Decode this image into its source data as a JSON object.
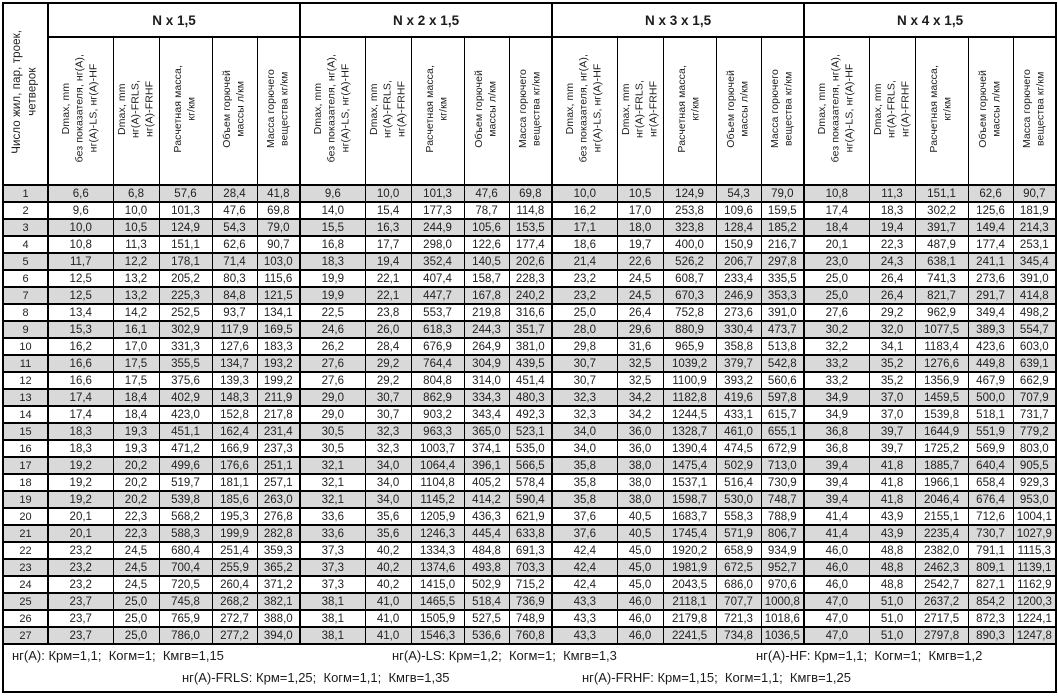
{
  "colors": {
    "stripe": "#d9d9d9",
    "border": "#000000",
    "text": "#1c1c1c"
  },
  "table": {
    "row_col_header": "Число жил, пар, троек,\nчетверок",
    "groups": [
      {
        "label": "N х 1,5"
      },
      {
        "label": "N х 2 х 1,5"
      },
      {
        "label": "N х 3 х 1,5"
      },
      {
        "label": "N х 4 х 1,5"
      }
    ],
    "sub_headers": [
      "Dmax, mm\nбез показателя, нг(А),\nнг(А)-LS, нг(А)-HF",
      "Dmax, mm\nнг(А)-FRLS,\nнг(А)-FRHF",
      "Расчетная масса,\nкг/км",
      "Объем горючей\nмассы л/км",
      "Масса горючего\nвещества кг/км"
    ],
    "rows": [
      {
        "n": "1",
        "cells": [
          "6,6",
          "6,8",
          "57,6",
          "28,4",
          "41,8",
          "9,6",
          "10,0",
          "101,3",
          "47,6",
          "69,8",
          "10,0",
          "10,5",
          "124,9",
          "54,3",
          "79,0",
          "10,8",
          "11,3",
          "151,1",
          "62,6",
          "90,7"
        ]
      },
      {
        "n": "2",
        "cells": [
          "9,6",
          "10,0",
          "101,3",
          "47,6",
          "69,8",
          "14,0",
          "15,4",
          "177,3",
          "78,7",
          "114,8",
          "16,2",
          "17,0",
          "253,8",
          "109,6",
          "159,5",
          "17,4",
          "18,3",
          "302,2",
          "125,6",
          "181,9"
        ]
      },
      {
        "n": "3",
        "cells": [
          "10,0",
          "10,5",
          "124,9",
          "54,3",
          "79,0",
          "15,5",
          "16,3",
          "244,9",
          "105,6",
          "153,5",
          "17,1",
          "18,0",
          "323,8",
          "128,4",
          "185,2",
          "18,4",
          "19,4",
          "391,7",
          "149,4",
          "214,3"
        ]
      },
      {
        "n": "4",
        "cells": [
          "10,8",
          "11,3",
          "151,1",
          "62,6",
          "90,7",
          "16,8",
          "17,7",
          "298,0",
          "122,6",
          "177,4",
          "18,6",
          "19,7",
          "400,0",
          "150,9",
          "216,7",
          "20,1",
          "22,3",
          "487,9",
          "177,4",
          "253,1"
        ]
      },
      {
        "n": "5",
        "cells": [
          "11,7",
          "12,2",
          "178,1",
          "71,4",
          "103,0",
          "18,3",
          "19,4",
          "352,4",
          "140,5",
          "202,6",
          "21,4",
          "22,6",
          "526,2",
          "206,7",
          "297,8",
          "23,0",
          "24,3",
          "638,1",
          "241,1",
          "345,4"
        ]
      },
      {
        "n": "6",
        "cells": [
          "12,5",
          "13,2",
          "205,2",
          "80,3",
          "115,6",
          "19,9",
          "22,1",
          "407,4",
          "158,7",
          "228,3",
          "23,2",
          "24,5",
          "608,7",
          "233,4",
          "335,5",
          "25,0",
          "26,4",
          "741,3",
          "273,6",
          "391,0"
        ]
      },
      {
        "n": "7",
        "cells": [
          "12,5",
          "13,2",
          "225,3",
          "84,8",
          "121,5",
          "19,9",
          "22,1",
          "447,7",
          "167,8",
          "240,2",
          "23,2",
          "24,5",
          "670,3",
          "246,9",
          "353,3",
          "25,0",
          "26,4",
          "821,7",
          "291,7",
          "414,8"
        ]
      },
      {
        "n": "8",
        "cells": [
          "13,4",
          "14,2",
          "252,5",
          "93,7",
          "134,1",
          "22,5",
          "23,8",
          "553,7",
          "219,8",
          "316,6",
          "25,0",
          "26,4",
          "752,8",
          "273,6",
          "391,0",
          "27,6",
          "29,2",
          "962,9",
          "349,4",
          "498,2"
        ]
      },
      {
        "n": "9",
        "cells": [
          "15,3",
          "16,1",
          "302,9",
          "117,9",
          "169,5",
          "24,6",
          "26,0",
          "618,3",
          "244,3",
          "351,7",
          "28,0",
          "29,6",
          "880,9",
          "330,4",
          "473,7",
          "30,2",
          "32,0",
          "1077,5",
          "389,3",
          "554,7"
        ]
      },
      {
        "n": "10",
        "cells": [
          "16,2",
          "17,0",
          "331,3",
          "127,6",
          "183,3",
          "26,2",
          "28,4",
          "676,9",
          "264,9",
          "381,0",
          "29,8",
          "31,6",
          "965,9",
          "358,8",
          "513,8",
          "32,2",
          "34,1",
          "1183,4",
          "423,6",
          "603,0"
        ]
      },
      {
        "n": "11",
        "cells": [
          "16,6",
          "17,5",
          "355,5",
          "134,7",
          "193,2",
          "27,6",
          "29,2",
          "764,4",
          "304,9",
          "439,5",
          "30,7",
          "32,5",
          "1039,2",
          "379,7",
          "542,8",
          "33,2",
          "35,2",
          "1276,6",
          "449,8",
          "639,1"
        ]
      },
      {
        "n": "12",
        "cells": [
          "16,6",
          "17,5",
          "375,6",
          "139,3",
          "199,2",
          "27,6",
          "29,2",
          "804,8",
          "314,0",
          "451,4",
          "30,7",
          "32,5",
          "1100,9",
          "393,2",
          "560,6",
          "33,2",
          "35,2",
          "1356,9",
          "467,9",
          "662,9"
        ]
      },
      {
        "n": "13",
        "cells": [
          "17,4",
          "18,4",
          "402,9",
          "148,3",
          "211,9",
          "29,0",
          "30,7",
          "862,9",
          "334,3",
          "480,3",
          "32,3",
          "34,2",
          "1182,8",
          "419,6",
          "597,8",
          "34,9",
          "37,0",
          "1459,5",
          "500,0",
          "707,9"
        ]
      },
      {
        "n": "14",
        "cells": [
          "17,4",
          "18,4",
          "423,0",
          "152,8",
          "217,8",
          "29,0",
          "30,7",
          "903,2",
          "343,4",
          "492,3",
          "32,3",
          "34,2",
          "1244,5",
          "433,1",
          "615,7",
          "34,9",
          "37,0",
          "1539,8",
          "518,1",
          "731,7"
        ]
      },
      {
        "n": "15",
        "cells": [
          "18,3",
          "19,3",
          "451,1",
          "162,4",
          "231,4",
          "30,5",
          "32,3",
          "963,3",
          "365,0",
          "523,1",
          "34,0",
          "36,0",
          "1328,7",
          "461,0",
          "655,1",
          "36,8",
          "39,7",
          "1644,9",
          "551,9",
          "779,2"
        ]
      },
      {
        "n": "16",
        "cells": [
          "18,3",
          "19,3",
          "471,2",
          "166,9",
          "237,3",
          "30,5",
          "32,3",
          "1003,7",
          "374,1",
          "535,0",
          "34,0",
          "36,0",
          "1390,4",
          "474,5",
          "672,9",
          "36,8",
          "39,7",
          "1725,2",
          "569,9",
          "803,0"
        ]
      },
      {
        "n": "17",
        "cells": [
          "19,2",
          "20,2",
          "499,6",
          "176,6",
          "251,1",
          "32,1",
          "34,0",
          "1064,4",
          "396,1",
          "566,5",
          "35,8",
          "38,0",
          "1475,4",
          "502,9",
          "713,0",
          "39,4",
          "41,8",
          "1885,7",
          "640,4",
          "905,5"
        ]
      },
      {
        "n": "18",
        "cells": [
          "19,2",
          "20,2",
          "519,7",
          "181,1",
          "257,1",
          "32,1",
          "34,0",
          "1104,8",
          "405,2",
          "578,4",
          "35,8",
          "38,0",
          "1537,1",
          "516,4",
          "730,9",
          "39,4",
          "41,8",
          "1966,1",
          "658,4",
          "929,3"
        ]
      },
      {
        "n": "19",
        "cells": [
          "19,2",
          "20,2",
          "539,8",
          "185,6",
          "263,0",
          "32,1",
          "34,0",
          "1145,2",
          "414,2",
          "590,4",
          "35,8",
          "38,0",
          "1598,7",
          "530,0",
          "748,7",
          "39,4",
          "41,8",
          "2046,4",
          "676,4",
          "953,0"
        ]
      },
      {
        "n": "20",
        "cells": [
          "20,1",
          "22,3",
          "568,2",
          "195,3",
          "276,8",
          "33,6",
          "35,6",
          "1205,9",
          "436,3",
          "621,9",
          "37,6",
          "40,5",
          "1683,7",
          "558,3",
          "788,9",
          "41,4",
          "43,9",
          "2155,1",
          "712,6",
          "1004,1"
        ]
      },
      {
        "n": "21",
        "cells": [
          "20,1",
          "22,3",
          "588,3",
          "199,9",
          "282,8",
          "33,6",
          "35,6",
          "1246,3",
          "445,4",
          "633,8",
          "37,6",
          "40,5",
          "1745,4",
          "571,9",
          "806,7",
          "41,4",
          "43,9",
          "2235,4",
          "730,7",
          "1027,9"
        ]
      },
      {
        "n": "22",
        "cells": [
          "23,2",
          "24,5",
          "680,4",
          "251,4",
          "359,3",
          "37,3",
          "40,2",
          "1334,3",
          "484,8",
          "691,3",
          "42,4",
          "45,0",
          "1920,2",
          "658,9",
          "934,9",
          "46,0",
          "48,8",
          "2382,0",
          "791,1",
          "1115,3"
        ]
      },
      {
        "n": "23",
        "cells": [
          "23,2",
          "24,5",
          "700,4",
          "255,9",
          "365,2",
          "37,3",
          "40,2",
          "1374,6",
          "493,8",
          "703,3",
          "42,4",
          "45,0",
          "1981,9",
          "672,5",
          "952,7",
          "46,0",
          "48,8",
          "2462,3",
          "809,1",
          "1139,1"
        ]
      },
      {
        "n": "24",
        "cells": [
          "23,2",
          "24,5",
          "720,5",
          "260,4",
          "371,2",
          "37,3",
          "40,2",
          "1415,0",
          "502,9",
          "715,2",
          "42,4",
          "45,0",
          "2043,5",
          "686,0",
          "970,6",
          "46,0",
          "48,8",
          "2542,7",
          "827,1",
          "1162,9"
        ]
      },
      {
        "n": "25",
        "cells": [
          "23,7",
          "25,0",
          "745,8",
          "268,2",
          "382,1",
          "38,1",
          "41,0",
          "1465,5",
          "518,4",
          "736,9",
          "43,3",
          "46,0",
          "2118,1",
          "707,7",
          "1000,8",
          "47,0",
          "51,0",
          "2637,2",
          "854,2",
          "1200,3"
        ]
      },
      {
        "n": "26",
        "cells": [
          "23,7",
          "25,0",
          "765,9",
          "272,7",
          "388,0",
          "38,1",
          "41,0",
          "1505,9",
          "527,5",
          "748,9",
          "43,3",
          "46,0",
          "2179,8",
          "721,3",
          "1018,6",
          "47,0",
          "51,0",
          "2717,5",
          "872,3",
          "1224,1"
        ]
      },
      {
        "n": "27",
        "cells": [
          "23,7",
          "25,0",
          "786,0",
          "277,2",
          "394,0",
          "38,1",
          "41,0",
          "1546,3",
          "536,6",
          "760,8",
          "43,3",
          "46,0",
          "2241,5",
          "734,8",
          "1036,5",
          "47,0",
          "51,0",
          "2797,8",
          "890,3",
          "1247,8"
        ]
      }
    ],
    "footnotes": {
      "line1": [
        "нг(А): Крм=1,1;  Когм=1;  Кмгв=1,15",
        "нг(А)-LS: Крм=1,2;  Когм=1;  Кмгв=1,3",
        "нг(А)-HF: Крм=1,1;  Когм=1;  Кмгв=1,2"
      ],
      "line2": [
        "нг(А)-FRLS: Крм=1,25;  Когм=1,1;  Кмгв=1,35",
        "нг(А)-FRHF: Крм=1,15;  Когм=1,1;  Кмгв=1,25"
      ]
    }
  }
}
